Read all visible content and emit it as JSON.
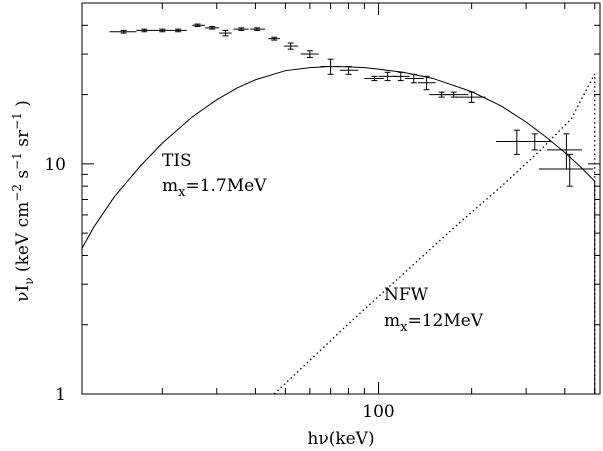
{
  "chart_data": {
    "type": "scatter",
    "x_scale": "log",
    "y_scale": "log",
    "xlim": [
      11,
      520
    ],
    "ylim": [
      1,
      50
    ],
    "xlabel": {
      "main": "h",
      "greek": "ν",
      "rest": "(keV)"
    },
    "ylabel": {
      "nu": "ν",
      "I": "I",
      "I_sub": "ν",
      "units_open": " (keV cm",
      "exp1": "−2",
      "s": " s",
      "exp2": "−1",
      "sr": " sr",
      "exp3": "−1",
      "close": " )"
    },
    "x_tick_labels": [
      {
        "value": 100,
        "label": "100"
      }
    ],
    "y_tick_labels": [
      {
        "value": 1,
        "label": "1"
      },
      {
        "value": 10,
        "label": "10"
      }
    ],
    "annotations": [
      {
        "name": "tis",
        "lines": [
          {
            "text": "TIS"
          },
          {
            "text": "m",
            "sub": "x",
            "rest": "=1.7MeV"
          }
        ]
      },
      {
        "name": "nfw",
        "lines": [
          {
            "text": "NFW"
          },
          {
            "text": "m",
            "sub": "x",
            "rest": "=12MeV"
          }
        ]
      }
    ],
    "series": [
      {
        "key": "observations",
        "style": "error-bars",
        "points": [
          {
            "x": 15,
            "y": 37.5,
            "xerr": [
              13.5,
              16.5
            ],
            "yerr": [
              37,
              38
            ]
          },
          {
            "x": 17.5,
            "y": 38,
            "xerr": [
              16.5,
              19
            ],
            "yerr": [
              37.5,
              38.5
            ]
          },
          {
            "x": 20,
            "y": 38,
            "xerr": [
              19,
              21.5
            ],
            "yerr": [
              37.5,
              38.5
            ]
          },
          {
            "x": 22.5,
            "y": 38,
            "xerr": [
              21.5,
              24
            ],
            "yerr": [
              37.5,
              38.5
            ]
          },
          {
            "x": 26,
            "y": 40,
            "xerr": [
              25,
              27.5
            ],
            "yerr": [
              39.5,
              40.5
            ]
          },
          {
            "x": 29,
            "y": 39,
            "xerr": [
              27.5,
              30.5
            ],
            "yerr": [
              38.5,
              39.5
            ]
          },
          {
            "x": 32,
            "y": 37,
            "xerr": [
              30.5,
              33.5
            ],
            "yerr": [
              36,
              38
            ]
          },
          {
            "x": 36,
            "y": 38.5,
            "xerr": [
              34,
              38
            ],
            "yerr": [
              38,
              39
            ]
          },
          {
            "x": 40.5,
            "y": 38.5,
            "xerr": [
              38.5,
              43
            ],
            "yerr": [
              38,
              39
            ]
          },
          {
            "x": 46,
            "y": 35,
            "xerr": [
              44,
              48
            ],
            "yerr": [
              34.5,
              35.5
            ]
          },
          {
            "x": 52,
            "y": 32.5,
            "xerr": [
              49.5,
              55
            ],
            "yerr": [
              31.5,
              33.5
            ]
          },
          {
            "x": 60,
            "y": 30,
            "xerr": [
              56,
              64
            ],
            "yerr": [
              29,
              31
            ]
          },
          {
            "x": 70,
            "y": 26.5,
            "xerr": [
              65,
              75
            ],
            "yerr": [
              24.5,
              28.5
            ]
          },
          {
            "x": 80,
            "y": 25.5,
            "xerr": [
              75,
              86
            ],
            "yerr": [
              24.5,
              26.5
            ]
          },
          {
            "x": 97,
            "y": 23.5,
            "xerr": [
              90,
              104
            ],
            "yerr": [
              23,
              24
            ]
          },
          {
            "x": 107,
            "y": 24,
            "xerr": [
              100,
              115
            ],
            "yerr": [
              23,
              25
            ]
          },
          {
            "x": 118,
            "y": 24,
            "xerr": [
              111,
              126
            ],
            "yerr": [
              23,
              25
            ]
          },
          {
            "x": 130,
            "y": 23.5,
            "xerr": [
              122,
              140
            ],
            "yerr": [
              22.5,
              24.5
            ]
          },
          {
            "x": 143,
            "y": 22.5,
            "xerr": [
              134,
              153
            ],
            "yerr": [
              21,
              24
            ]
          },
          {
            "x": 160,
            "y": 20,
            "xerr": [
              146,
              176
            ],
            "yerr": [
              19.5,
              20.5
            ]
          },
          {
            "x": 175,
            "y": 20,
            "xerr": [
              158,
              195
            ],
            "yerr": [
              19.5,
              20.5
            ]
          },
          {
            "x": 200,
            "y": 19.5,
            "xerr": [
              178,
              222
            ],
            "yerr": [
              18.5,
              20.5
            ]
          },
          {
            "x": 280,
            "y": 12.5,
            "xerr": [
              240,
              320
            ],
            "yerr": [
              11,
              14
            ]
          },
          {
            "x": 320,
            "y": 12.5,
            "xerr": [
              285,
              360
            ],
            "yerr": [
              11.5,
              13.5
            ]
          },
          {
            "x": 405,
            "y": 11.5,
            "xerr": [
              350,
              455
            ],
            "yerr": [
              9.5,
              13.5
            ]
          },
          {
            "x": 415,
            "y": 9.5,
            "xerr": [
              330,
              495
            ],
            "yerr": [
              8,
              11
            ]
          }
        ]
      },
      {
        "key": "tis_model",
        "style": "solid",
        "x": [
          11,
          12,
          14,
          17,
          20,
          25,
          30,
          35,
          40,
          50,
          60,
          70,
          80,
          90,
          100,
          120,
          150,
          200,
          250,
          300,
          350,
          400,
          450,
          500
        ],
        "y": [
          4.3,
          5.3,
          7.2,
          9.8,
          12.3,
          16.0,
          19.0,
          21.4,
          23.2,
          25.4,
          26.2,
          26.5,
          26.4,
          26.2,
          25.8,
          25.0,
          23.5,
          20.6,
          17.8,
          15.2,
          13.0,
          11.2,
          9.7,
          8.4
        ]
      },
      {
        "key": "nfw_model",
        "style": "dotted",
        "x": [
          46,
          80,
          120,
          180,
          250,
          330,
          420,
          500
        ],
        "y": [
          1.0,
          2.02,
          3.32,
          5.45,
          8.0,
          11.3,
          15.7,
          24.6
        ]
      }
    ],
    "cutoff_x": 500
  }
}
